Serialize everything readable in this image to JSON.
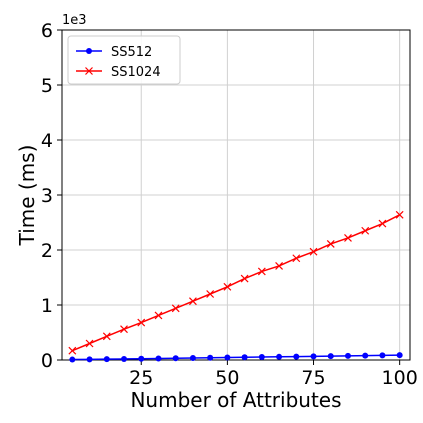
{
  "chart_data": {
    "type": "line",
    "title": "",
    "xlabel": "Number of Attributes",
    "ylabel": "Time (ms)",
    "y_offset_label": "1e3",
    "y_scale_factor": 1000,
    "xlim": [
      2,
      103
    ],
    "ylim": [
      0,
      6000
    ],
    "x_ticks": [
      25,
      50,
      75,
      100
    ],
    "x_tick_labels": [
      "25",
      "50",
      "75",
      "100"
    ],
    "y_ticks": [
      0,
      1000,
      2000,
      3000,
      4000,
      5000,
      6000
    ],
    "y_tick_labels": [
      "0",
      "1",
      "2",
      "3",
      "4",
      "5",
      "6"
    ],
    "grid": true,
    "legend_position": "top-left",
    "x": [
      5,
      10,
      15,
      20,
      25,
      30,
      35,
      40,
      45,
      50,
      55,
      60,
      65,
      70,
      75,
      80,
      85,
      90,
      95,
      100
    ],
    "series": [
      {
        "name": "SS512",
        "color": "#0000ff",
        "marker": "dot",
        "values": [
          8,
          11,
          15,
          19,
          23,
          28,
          32,
          37,
          41,
          45,
          49,
          54,
          58,
          62,
          66,
          71,
          75,
          79,
          84,
          88
        ]
      },
      {
        "name": "SS1024",
        "color": "#ff0000",
        "marker": "x",
        "values": [
          170,
          300,
          430,
          560,
          680,
          810,
          940,
          1070,
          1200,
          1330,
          1480,
          1610,
          1710,
          1850,
          1970,
          2110,
          2220,
          2350,
          2480,
          2640
        ]
      }
    ]
  }
}
